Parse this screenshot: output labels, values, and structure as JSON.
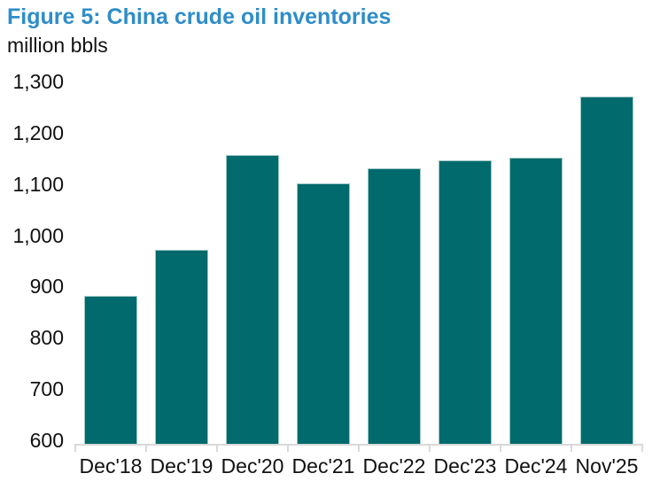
{
  "figure": {
    "title": "Figure 5: China crude oil inventories",
    "units_label": "million bbls"
  },
  "chart_data": {
    "type": "bar",
    "title": "Figure 5: China crude oil inventories",
    "ylabel": "million bbls",
    "xlabel": "",
    "categories": [
      "Dec'18",
      "Dec'19",
      "Dec'20",
      "Dec'21",
      "Dec'22",
      "Dec'23",
      "Dec'24",
      "Nov'25"
    ],
    "values": [
      890,
      980,
      1165,
      1110,
      1140,
      1155,
      1160,
      1280
    ],
    "ylim": [
      600,
      1300
    ],
    "yticks": [
      600,
      700,
      800,
      900,
      1000,
      1100,
      1200,
      1300
    ],
    "ytick_labels": [
      "600",
      "700",
      "800",
      "900",
      "1,000",
      "1,100",
      "1,200",
      "1,300"
    ],
    "grid": false,
    "legend": "none",
    "colors": {
      "bar_fill": "#006a6c",
      "bar_edge": "#9fc6c5",
      "axis_line": "#d9d9d9",
      "title_text": "#2e8dc8",
      "label_text": "#111111"
    }
  }
}
